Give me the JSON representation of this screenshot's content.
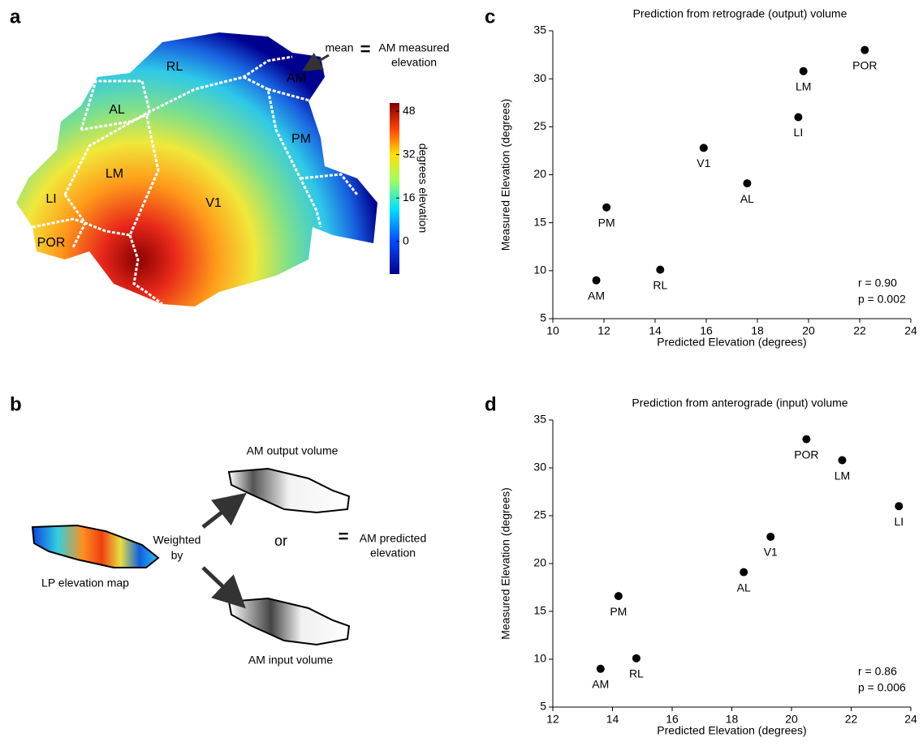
{
  "panel_labels": [
    "a",
    "b",
    "c",
    "d"
  ],
  "panel_a": {
    "areas": [
      "RL",
      "AL",
      "AM",
      "PM",
      "LM",
      "V1",
      "LI",
      "POR"
    ],
    "colorbar": {
      "label": "degrees elevation",
      "lim": [
        -12,
        51
      ],
      "ticks": [
        48,
        32,
        16,
        0
      ]
    },
    "mean_note": {
      "word": "mean",
      "equals": "=",
      "lines": [
        "AM measured",
        "elevation"
      ]
    }
  },
  "panel_b": {
    "map_label": "LP elevation map",
    "weighted": [
      "Weighted",
      "by"
    ],
    "output_label": "AM output volume",
    "input_label": "AM input volume",
    "or": "or",
    "equals": "=",
    "result": [
      "AM predicted",
      "elevation"
    ]
  },
  "chart_data": [
    {
      "type": "scatter",
      "title": "Prediction from retrograde (output) volume",
      "xlabel": "Predicted Elevation (degrees)",
      "ylabel": "Measured Elevation (degrees)",
      "point_labels": [
        "AM",
        "RL",
        "PM",
        "AL",
        "V1",
        "LI",
        "LM",
        "POR"
      ],
      "x": [
        11.7,
        14.2,
        12.1,
        17.6,
        15.9,
        19.6,
        19.8,
        22.2
      ],
      "values": [
        9.0,
        10.1,
        16.6,
        19.1,
        22.8,
        26.0,
        30.8,
        33.0
      ],
      "color": "#000000",
      "xlim": [
        10,
        24
      ],
      "xticks": [
        10,
        12,
        14,
        16,
        18,
        20,
        22,
        24
      ],
      "ylim": [
        5,
        35
      ],
      "yticks": [
        5,
        10,
        15,
        20,
        25,
        30,
        35
      ],
      "annotations": [
        "r = 0.90",
        "p = 0.002"
      ]
    },
    {
      "type": "scatter",
      "title": "Prediction from anterograde (input) volume",
      "xlabel": "Predicted Elevation (degrees)",
      "ylabel": "Measured Elevation (degrees)",
      "point_labels": [
        "AM",
        "RL",
        "PM",
        "AL",
        "V1",
        "LI",
        "LM",
        "POR"
      ],
      "x": [
        13.6,
        14.8,
        14.2,
        18.4,
        19.3,
        23.6,
        21.7,
        20.5
      ],
      "values": [
        9.0,
        10.1,
        16.6,
        19.1,
        22.8,
        26.0,
        30.8,
        33.0
      ],
      "color": "#000000",
      "xlim": [
        12,
        24
      ],
      "xticks": [
        12,
        14,
        16,
        18,
        20,
        22,
        24
      ],
      "ylim": [
        5,
        35
      ],
      "yticks": [
        5,
        10,
        15,
        20,
        25,
        30,
        35
      ],
      "annotations": [
        "r = 0.86",
        "p = 0.006"
      ]
    }
  ]
}
